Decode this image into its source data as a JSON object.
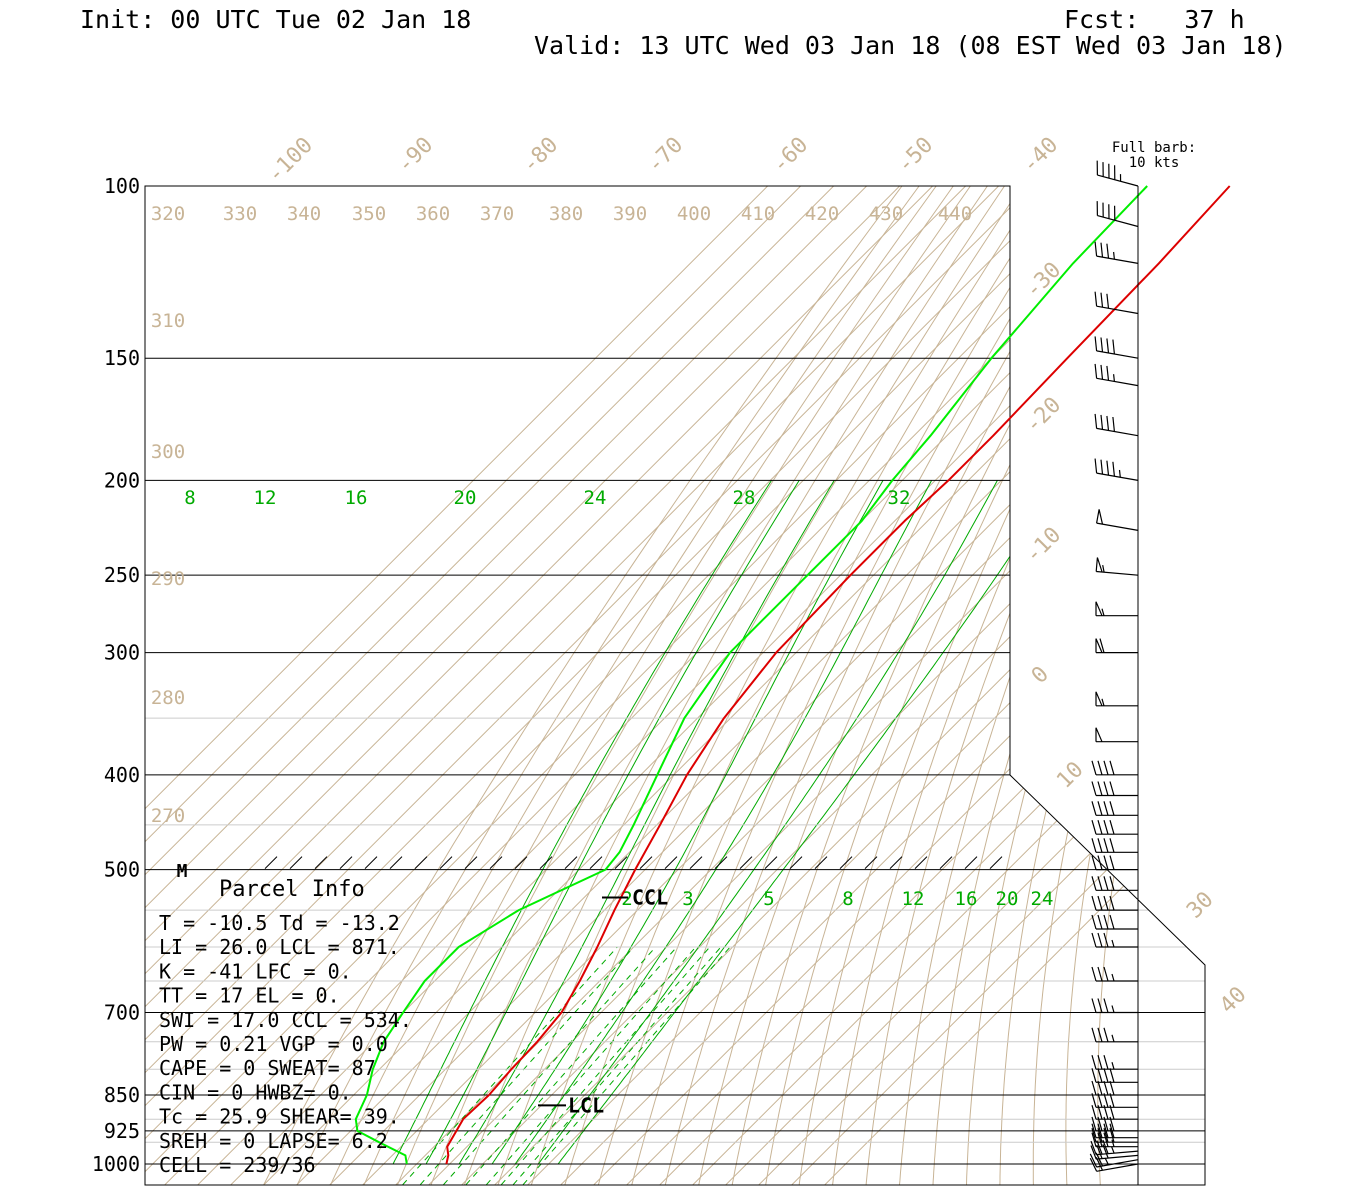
{
  "header": {
    "init": "Init: 00 UTC Tue 02 Jan 18",
    "fcst": "Fcst:   37 h",
    "valid": "Valid: 13 UTC Wed 03 Jan 18 (08 EST Wed 03 Jan 18)"
  },
  "legend": {
    "barb_line1": "Full barb:",
    "barb_line2": "10 kts"
  },
  "parcel": {
    "title": "Parcel Info",
    "rows": [
      "T  =   -10.5 Td = -13.2",
      "LI =    26.0 LCL =  871.",
      "K  =     -41 LFC =    0.",
      "TT =      17 EL  =    0.",
      "SWI =   17.0 CCL =  534.",
      "PW =    0.21 VGP =   0.0",
      "CAPE =     0 SWEAT=   87",
      "CIN =      0 HWBZ=    0.",
      "Tc =    25.9 SHEAR=  39.",
      "SREH =     0 LAPSE=  6.2",
      "CELL = 239/36"
    ]
  },
  "markers": {
    "m": "M",
    "ccl": "CCL",
    "lcl": "LCL"
  },
  "colors": {
    "temp": "#dd0000",
    "dewpoint": "#00ee00",
    "isotherm": "#c8b496",
    "mixing": "#00aa00",
    "grid": "#000000"
  },
  "chart_data": {
    "type": "line",
    "chart_kind": "skew-T log-p sounding",
    "y_axis": {
      "scale": "log",
      "ticks": [
        100,
        150,
        200,
        250,
        300,
        400,
        500,
        700,
        850,
        925,
        1000
      ],
      "range": [
        100,
        1050
      ],
      "unit": "hPa"
    },
    "isotherm_labels": [
      "-100",
      "-90",
      "-80",
      "-70",
      "-60",
      "-50",
      "-40",
      "-30",
      "-20",
      "-10",
      "0",
      "10",
      "30",
      "40"
    ],
    "theta_labels": [
      "320",
      "330",
      "340",
      "350",
      "360",
      "370",
      "380",
      "390",
      "400",
      "410",
      "420",
      "430",
      "440",
      "310",
      "300",
      "290",
      "280",
      "270"
    ],
    "mixing_labels_upper": [
      "8",
      "12",
      "16",
      "20",
      "24",
      "28",
      "32"
    ],
    "mixing_labels_lower": [
      "2",
      "3",
      "5",
      "8",
      "12",
      "16",
      "20",
      "24"
    ],
    "series": [
      {
        "role": "temperature",
        "p": [
          1000,
          980,
          960,
          925,
          900,
          850,
          800,
          750,
          700,
          650,
          600,
          550,
          500,
          450,
          400,
          350,
          300,
          250,
          220,
          200,
          180,
          150,
          120,
          100
        ],
        "value": [
          -1,
          -3,
          -6,
          -8,
          -9.5,
          -9,
          -10,
          -10.5,
          -12,
          -16,
          -21,
          -27,
          -33,
          -39,
          -46,
          -52,
          -56,
          -57,
          -57,
          -56,
          -56,
          -57,
          -58,
          -60
        ]
      },
      {
        "role": "dewpoint",
        "p": [
          1000,
          980,
          950,
          925,
          900,
          850,
          800,
          750,
          700,
          650,
          600,
          550,
          500,
          480,
          450,
          400,
          350,
          300,
          250,
          220,
          200,
          180,
          150,
          120,
          100
        ],
        "value": [
          -13,
          -16,
          -28,
          -38,
          -42,
          -46,
          -52,
          -57,
          -60,
          -63,
          -63,
          -56,
          -42,
          -43,
          -47,
          -55,
          -64,
          -70,
          -70,
          -70,
          -73,
          -75,
          -80,
          -84,
          -85
        ]
      }
    ],
    "wind_barbs": {
      "p": [
        1000,
        990,
        980,
        970,
        960,
        950,
        940,
        925,
        900,
        875,
        850,
        825,
        800,
        750,
        700,
        650,
        600,
        575,
        550,
        525,
        500,
        480,
        460,
        440,
        420,
        400,
        370,
        340,
        300,
        275,
        250,
        225,
        200,
        180,
        160,
        150,
        135,
        120,
        110,
        100
      ],
      "dir": [
        260,
        260,
        265,
        265,
        270,
        270,
        270,
        270,
        270,
        270,
        270,
        270,
        270,
        270,
        270,
        270,
        270,
        270,
        270,
        270,
        270,
        270,
        270,
        270,
        270,
        270,
        270,
        270,
        270,
        270,
        275,
        280,
        280,
        280,
        280,
        280,
        280,
        280,
        285,
        285
      ],
      "spd": [
        20,
        25,
        30,
        35,
        35,
        40,
        40,
        40,
        40,
        40,
        40,
        40,
        35,
        35,
        35,
        35,
        35,
        40,
        40,
        40,
        40,
        40,
        40,
        40,
        40,
        40,
        50,
        55,
        60,
        55,
        55,
        50,
        45,
        40,
        35,
        40,
        30,
        35,
        40,
        45
      ]
    }
  }
}
